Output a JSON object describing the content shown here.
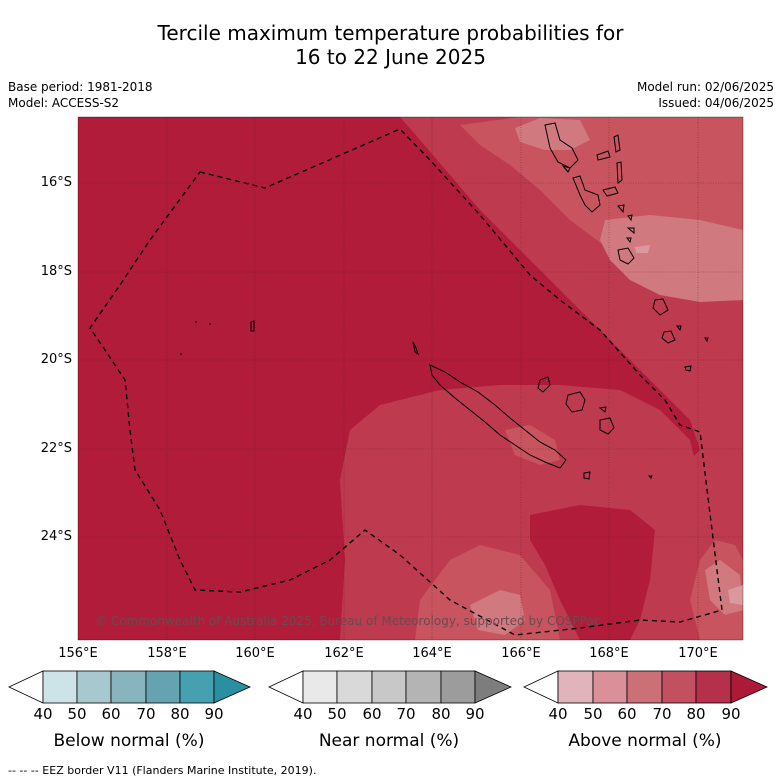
{
  "title": {
    "line1": "Tercile maximum temperature probabilities for",
    "line2": "16 to 22 June 2025"
  },
  "meta_left": {
    "base_period": "Base period: 1981-2018",
    "model": "Model: ACCESS-S2"
  },
  "meta_right": {
    "model_run": "Model run: 02/06/2025",
    "issued": "Issued: 04/06/2025"
  },
  "map": {
    "lat_labels": [
      "16°S",
      "18°S",
      "20°S",
      "22°S",
      "24°S"
    ],
    "lon_labels": [
      "156°E",
      "158°E",
      "160°E",
      "162°E",
      "164°E",
      "166°E",
      "168°E",
      "170°E"
    ],
    "copyright": "© Commonwealth of Australia 2025, Bureau of Meteorology, supported by COSPPac",
    "colors": {
      "p90": "#b01c3a",
      "p80": "#be3a4f",
      "p70": "#c7545f",
      "p60": "#d07a80",
      "p50": "#db999d"
    }
  },
  "colorbars": [
    {
      "title": "Below normal (%)",
      "ticks": [
        "40",
        "50",
        "60",
        "70",
        "80",
        "90"
      ],
      "colors": [
        "#ffffff",
        "#cde3e8",
        "#a8c8cf",
        "#88b4be",
        "#66a3b0",
        "#46a0b0",
        "#2a8fa0"
      ]
    },
    {
      "title": "Near normal (%)",
      "ticks": [
        "40",
        "50",
        "60",
        "70",
        "80",
        "90"
      ],
      "colors": [
        "#ffffff",
        "#e9e9e9",
        "#d9d9d9",
        "#c8c8c8",
        "#b4b4b4",
        "#9c9c9c",
        "#7d7d7d"
      ]
    },
    {
      "title": "Above normal (%)",
      "ticks": [
        "40",
        "50",
        "60",
        "70",
        "80",
        "90"
      ],
      "colors": [
        "#ffffff",
        "#e0b4ba",
        "#d99098",
        "#cc7078",
        "#c25060",
        "#b5304a",
        "#ad1a38"
      ]
    }
  ],
  "footnote": "--  --  -- EEZ border V11 (Flanders Marine Institute, 2019)."
}
